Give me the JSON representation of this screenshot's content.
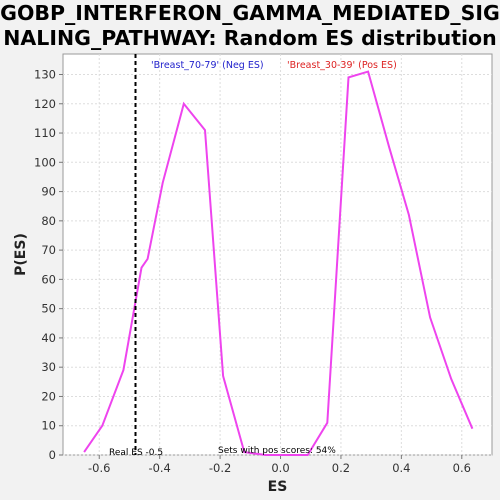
{
  "title_lines": [
    "GOBP_INTERFERON_GAMMA_MEDIATED_SIG",
    "NALING_PATHWAY: Random ES distribution"
  ],
  "chart_data": {
    "type": "line",
    "title": "GOBP_INTERFERON_GAMMA_MEDIATED_SIGNALING_PATHWAY: Random ES distribution",
    "xlabel": "ES",
    "ylabel": "P(ES)",
    "xlim": [
      -0.72,
      0.7
    ],
    "ylim": [
      0,
      137
    ],
    "xticks": [
      -0.6,
      -0.4,
      -0.2,
      0.0,
      0.2,
      0.4,
      0.6
    ],
    "xtick_labels": [
      "-0.6",
      "-0.4",
      "-0.2",
      "0.0",
      "0.2",
      "0.4",
      "0.6"
    ],
    "yticks": [
      0,
      10,
      20,
      30,
      40,
      50,
      60,
      70,
      80,
      90,
      100,
      110,
      120,
      130
    ],
    "ytick_labels": [
      "0",
      "10",
      "20",
      "30",
      "40",
      "50",
      "60",
      "70",
      "80",
      "90",
      "100",
      "110",
      "120",
      "130"
    ],
    "grid": true,
    "line_color": "#ee44ee",
    "series": [
      {
        "x": [
          -0.65,
          -0.59,
          -0.52,
          -0.46,
          -0.44,
          -0.39,
          -0.32,
          -0.25,
          -0.19,
          -0.12,
          -0.05,
          0.02,
          0.09,
          0.155,
          0.225,
          0.29,
          0.36,
          0.425,
          0.495,
          0.565,
          0.635
        ],
        "y": [
          1,
          10,
          29,
          64,
          67,
          93,
          120,
          111,
          27,
          1,
          0,
          0,
          0,
          11,
          129,
          131,
          105,
          82,
          47,
          26,
          9
        ]
      }
    ],
    "real_es": -0.48,
    "real_es_label": "Real ES -0.5",
    "annotation": "Sets with pos scores: 54%",
    "neg_label": "'Breast_70-79' (Neg ES)",
    "pos_label": "'Breast_30-39' (Pos ES)",
    "neg_color": "#2222cc",
    "pos_color": "#dd2222"
  }
}
